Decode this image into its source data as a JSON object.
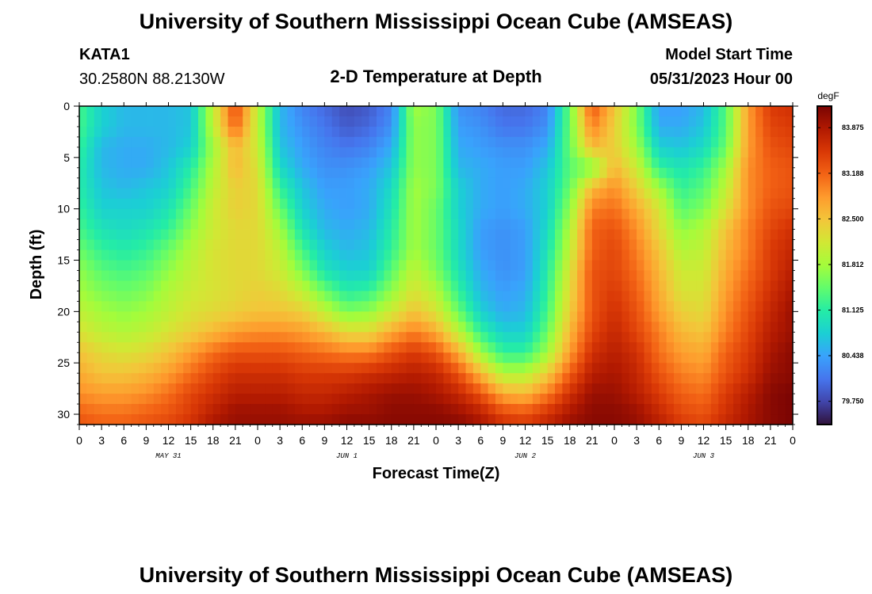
{
  "header": {
    "title": "University of Southern Mississippi Ocean Cube (AMSEAS)",
    "station": "KATA1",
    "coords": "30.2580N  88.2130W",
    "subtitle": "2-D Temperature at Depth",
    "model_start_label": "Model Start Time",
    "model_start_value": "05/31/2023 Hour 00"
  },
  "footer": {
    "title": "University of Southern Mississippi Ocean Cube (AMSEAS)"
  },
  "chart_data": {
    "type": "heatmap",
    "title": "2-D Temperature at Depth",
    "xlabel": "Forecast Time(Z)",
    "ylabel": "Depth (ft)",
    "xlim": [
      0,
      96
    ],
    "ylim": [
      0,
      31
    ],
    "y_inverted": true,
    "x_ticks": [
      0,
      3,
      6,
      9,
      12,
      15,
      18,
      21,
      24,
      27,
      30,
      33,
      36,
      39,
      42,
      45,
      48,
      51,
      54,
      57,
      60,
      63,
      66,
      69,
      72,
      75,
      78,
      81,
      84,
      87,
      90,
      93,
      96
    ],
    "x_tick_labels": [
      "0",
      "3",
      "6",
      "9",
      "12",
      "15",
      "18",
      "21",
      "0",
      "3",
      "6",
      "9",
      "12",
      "15",
      "18",
      "21",
      "0",
      "3",
      "6",
      "9",
      "12",
      "15",
      "18",
      "21",
      "0",
      "3",
      "6",
      "9",
      "12",
      "15",
      "18",
      "21",
      "0"
    ],
    "y_ticks": [
      0,
      5,
      10,
      15,
      20,
      25,
      30
    ],
    "y_tick_labels": [
      "0",
      "5",
      "10",
      "15",
      "20",
      "25",
      "30"
    ],
    "date_labels": [
      {
        "hour": 12,
        "label": "MAY 31"
      },
      {
        "hour": 36,
        "label": "JUN 1"
      },
      {
        "hour": 60,
        "label": "JUN 2"
      },
      {
        "hour": 84,
        "label": "JUN 3"
      }
    ],
    "colorbar": {
      "unit": "degF",
      "min": 79.4,
      "max": 84.2,
      "ticks": [
        83.875,
        83.188,
        82.5,
        81.812,
        81.125,
        80.438,
        79.75
      ],
      "tick_labels": [
        "83.875",
        "83.188",
        "82.500",
        "81.812",
        "81.125",
        "80.438",
        "79.750"
      ],
      "colors": [
        "#30123b",
        "#4145ab",
        "#4675ed",
        "#39a2fc",
        "#1bcfd4",
        "#24eca6",
        "#61fc6c",
        "#a4fc3b",
        "#d1e834",
        "#f3c63a",
        "#fe9b2d",
        "#f36315",
        "#d93806",
        "#b11901",
        "#7a0403"
      ]
    },
    "depths": [
      0,
      2,
      4,
      6,
      8,
      10,
      12,
      14,
      16,
      18,
      20,
      22,
      24,
      26,
      28,
      30,
      31
    ],
    "times": [
      0,
      3,
      6,
      9,
      12,
      15,
      18,
      21,
      24,
      27,
      30,
      33,
      36,
      39,
      42,
      45,
      48,
      51,
      54,
      57,
      60,
      63,
      66,
      69,
      72,
      75,
      78,
      81,
      84,
      87,
      90,
      93,
      96
    ],
    "values": [
      [
        81.3,
        80.8,
        80.6,
        80.6,
        80.6,
        80.7,
        82.0,
        83.4,
        82.0,
        80.6,
        80.2,
        80.0,
        79.8,
        79.9,
        80.2,
        81.8,
        81.6,
        80.3,
        80.2,
        80.0,
        80.0,
        80.2,
        81.5,
        83.3,
        82.5,
        81.6,
        80.4,
        80.4,
        80.6,
        81.4,
        82.8,
        83.5,
        83.6
      ],
      [
        81.3,
        80.8,
        80.6,
        80.6,
        80.6,
        80.7,
        82.0,
        83.2,
        82.0,
        80.6,
        80.3,
        80.1,
        79.9,
        80.0,
        80.3,
        81.7,
        81.6,
        80.4,
        80.3,
        80.1,
        80.1,
        80.3,
        81.5,
        83.0,
        82.4,
        81.6,
        80.5,
        80.5,
        80.7,
        81.4,
        82.8,
        83.4,
        83.5
      ],
      [
        81.2,
        80.6,
        80.5,
        80.5,
        80.6,
        80.8,
        81.8,
        82.6,
        82.1,
        80.7,
        80.4,
        80.2,
        80.1,
        80.2,
        80.5,
        81.7,
        81.6,
        80.5,
        80.4,
        80.3,
        80.3,
        80.5,
        81.5,
        82.6,
        82.4,
        81.8,
        80.8,
        80.7,
        80.9,
        81.5,
        82.8,
        83.3,
        83.4
      ],
      [
        81.1,
        80.6,
        80.5,
        80.5,
        80.7,
        81.1,
        81.9,
        82.6,
        82.2,
        80.9,
        80.5,
        80.3,
        80.3,
        80.4,
        80.7,
        81.7,
        81.6,
        80.6,
        80.5,
        80.4,
        80.4,
        80.7,
        81.4,
        81.6,
        82.6,
        82.1,
        81.2,
        81.0,
        81.2,
        81.8,
        82.9,
        83.2,
        83.3
      ],
      [
        81.1,
        80.7,
        80.6,
        80.7,
        80.8,
        81.3,
        82.0,
        82.4,
        82.3,
        81.2,
        80.7,
        80.4,
        80.4,
        80.5,
        80.9,
        81.8,
        81.6,
        80.8,
        80.5,
        80.4,
        80.5,
        80.8,
        81.5,
        82.6,
        82.9,
        82.4,
        81.8,
        81.2,
        81.4,
        82.0,
        82.9,
        83.2,
        83.3
      ],
      [
        81.2,
        80.8,
        80.8,
        80.8,
        81.0,
        81.5,
        82.1,
        82.4,
        82.3,
        81.5,
        80.8,
        80.5,
        80.4,
        80.5,
        81.0,
        81.8,
        81.5,
        80.8,
        80.5,
        80.4,
        80.5,
        80.8,
        81.7,
        83.0,
        83.1,
        82.7,
        82.2,
        81.4,
        81.6,
        82.2,
        82.9,
        83.3,
        83.4
      ],
      [
        81.3,
        81.0,
        80.9,
        81.0,
        81.2,
        81.7,
        82.1,
        82.3,
        82.3,
        81.8,
        81.0,
        80.6,
        80.5,
        80.6,
        81.1,
        81.8,
        81.5,
        80.9,
        80.4,
        80.3,
        80.4,
        80.9,
        81.9,
        83.2,
        83.3,
        82.9,
        82.3,
        81.7,
        81.9,
        82.5,
        83.0,
        83.4,
        83.6
      ],
      [
        81.5,
        81.2,
        81.1,
        81.2,
        81.5,
        81.9,
        82.2,
        82.3,
        82.3,
        82.0,
        81.3,
        80.8,
        80.6,
        80.7,
        81.2,
        81.8,
        81.5,
        80.9,
        80.4,
        80.3,
        80.4,
        81.0,
        82.0,
        83.2,
        83.4,
        83.0,
        82.5,
        81.9,
        82.0,
        82.6,
        83.0,
        83.5,
        83.7
      ],
      [
        81.7,
        81.4,
        81.3,
        81.4,
        81.7,
        82.0,
        82.2,
        82.3,
        82.3,
        82.1,
        81.6,
        81.0,
        80.8,
        80.8,
        81.4,
        82.0,
        81.6,
        81.0,
        80.5,
        80.3,
        80.4,
        81.1,
        82.2,
        83.3,
        83.4,
        83.1,
        82.6,
        82.1,
        82.1,
        82.7,
        83.1,
        83.5,
        83.8
      ],
      [
        81.8,
        81.6,
        81.5,
        81.6,
        81.9,
        82.1,
        82.2,
        82.3,
        82.4,
        82.3,
        82.0,
        81.5,
        81.1,
        81.2,
        81.7,
        82.2,
        81.9,
        81.2,
        80.6,
        80.4,
        80.5,
        81.2,
        82.3,
        83.3,
        83.5,
        83.2,
        82.7,
        82.2,
        82.2,
        82.8,
        83.2,
        83.6,
        83.9
      ],
      [
        82.0,
        81.8,
        81.7,
        81.8,
        82.0,
        82.2,
        82.3,
        82.4,
        82.5,
        82.5,
        82.4,
        82.0,
        81.6,
        81.7,
        82.1,
        82.5,
        82.2,
        81.5,
        80.8,
        80.5,
        80.6,
        81.3,
        82.4,
        83.3,
        83.6,
        83.3,
        82.8,
        82.4,
        82.3,
        82.9,
        83.3,
        83.7,
        84.0
      ],
      [
        82.2,
        82.0,
        81.9,
        82.0,
        82.2,
        82.4,
        82.6,
        82.8,
        82.9,
        82.9,
        82.8,
        82.6,
        82.3,
        82.3,
        82.7,
        83.0,
        82.7,
        82.0,
        81.2,
        80.8,
        80.8,
        81.5,
        82.6,
        83.4,
        83.7,
        83.4,
        83.0,
        82.6,
        82.5,
        83.0,
        83.4,
        83.8,
        84.0
      ],
      [
        82.5,
        82.3,
        82.2,
        82.3,
        82.5,
        82.8,
        83.1,
        83.3,
        83.3,
        83.3,
        83.2,
        83.1,
        83.0,
        83.0,
        83.3,
        83.5,
        83.3,
        82.7,
        81.8,
        81.2,
        81.2,
        81.8,
        82.8,
        83.6,
        83.8,
        83.6,
        83.1,
        82.8,
        82.7,
        83.2,
        83.5,
        83.9,
        84.1
      ],
      [
        82.7,
        82.5,
        82.5,
        82.6,
        82.8,
        83.1,
        83.4,
        83.6,
        83.6,
        83.6,
        83.5,
        83.5,
        83.5,
        83.6,
        83.7,
        83.8,
        83.7,
        83.3,
        82.6,
        81.9,
        81.9,
        82.4,
        83.2,
        83.8,
        83.9,
        83.7,
        83.3,
        83.0,
        82.9,
        83.3,
        83.6,
        84.0,
        84.1
      ],
      [
        82.9,
        82.8,
        82.8,
        82.9,
        83.1,
        83.4,
        83.6,
        83.8,
        83.8,
        83.8,
        83.7,
        83.7,
        83.8,
        83.9,
        84.0,
        84.0,
        83.9,
        83.7,
        83.3,
        82.7,
        82.6,
        83.0,
        83.6,
        84.0,
        84.0,
        83.8,
        83.5,
        83.2,
        83.1,
        83.5,
        83.8,
        84.1,
        84.2
      ],
      [
        83.2,
        83.1,
        83.1,
        83.2,
        83.3,
        83.5,
        83.8,
        84.0,
        84.0,
        84.0,
        83.9,
        83.9,
        84.0,
        84.0,
        84.1,
        84.1,
        84.1,
        84.0,
        83.8,
        83.4,
        83.3,
        83.6,
        83.9,
        84.1,
        84.1,
        84.0,
        83.7,
        83.4,
        83.3,
        83.6,
        83.9,
        84.1,
        84.2
      ],
      [
        83.3,
        83.2,
        83.2,
        83.3,
        83.4,
        83.6,
        83.9,
        84.0,
        84.0,
        84.0,
        84.0,
        84.0,
        84.1,
        84.1,
        84.1,
        84.1,
        84.1,
        84.1,
        83.9,
        83.6,
        83.5,
        83.7,
        84.0,
        84.1,
        84.1,
        84.0,
        83.8,
        83.5,
        83.4,
        83.7,
        83.9,
        84.1,
        84.2
      ]
    ]
  }
}
